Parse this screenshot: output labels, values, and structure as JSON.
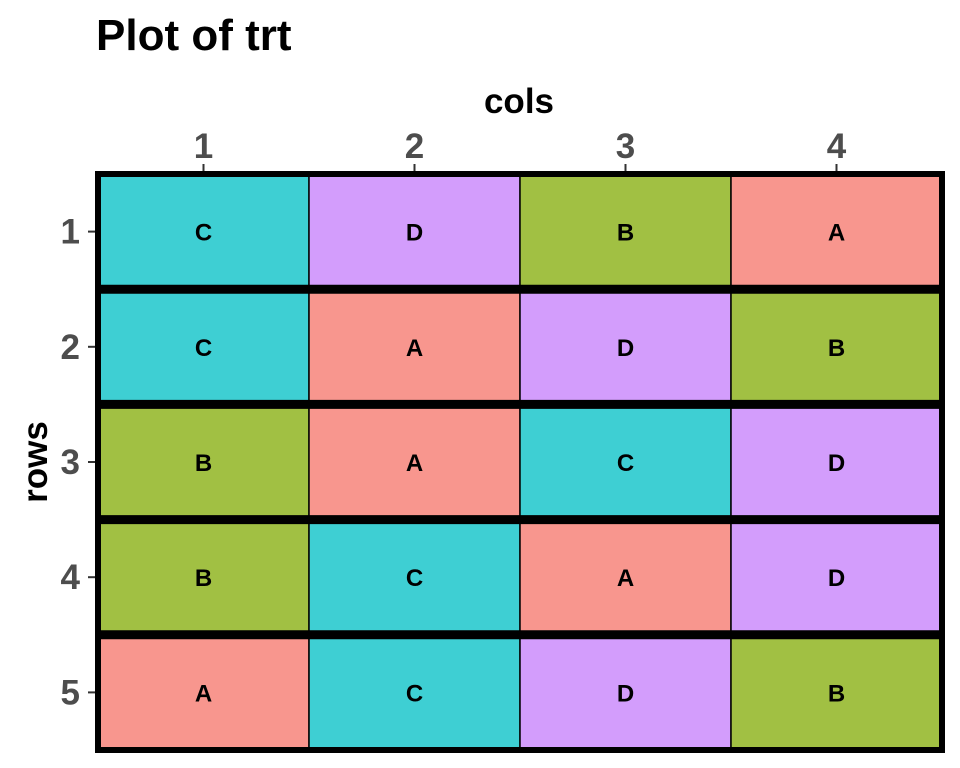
{
  "chart_data": {
    "type": "heatmap",
    "title": "Plot of trt",
    "xlabel": "cols",
    "ylabel": "rows",
    "x_categories": [
      "1",
      "2",
      "3",
      "4"
    ],
    "y_categories": [
      "1",
      "2",
      "3",
      "4",
      "5"
    ],
    "cells": [
      [
        "C",
        "D",
        "B",
        "A"
      ],
      [
        "C",
        "A",
        "D",
        "B"
      ],
      [
        "B",
        "A",
        "C",
        "D"
      ],
      [
        "B",
        "C",
        "A",
        "D"
      ],
      [
        "A",
        "C",
        "D",
        "B"
      ]
    ],
    "colors": {
      "A": "#F8968E",
      "B": "#A1C043",
      "C": "#3ECFD3",
      "D": "#D39DFC"
    },
    "x_axis_position": "top",
    "y_axis_reversed": true,
    "legend": "none",
    "grid": false
  }
}
